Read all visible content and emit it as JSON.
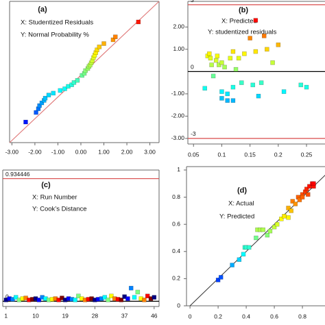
{
  "chart_data": [
    {
      "type": "scatter",
      "label": "(a)",
      "annotations": [
        "X: Studentized Residuals",
        "Y: Normal Probability %"
      ],
      "x": [
        -2.4,
        -1.95,
        -1.85,
        -1.8,
        -1.7,
        -1.6,
        -1.55,
        -1.4,
        -1.2,
        -0.9,
        -0.7,
        -0.55,
        -0.4,
        -0.3,
        -0.15,
        0.05,
        0.15,
        0.2,
        0.3,
        0.35,
        0.4,
        0.45,
        0.5,
        0.55,
        0.6,
        0.65,
        0.7,
        0.8,
        1.0,
        1.4,
        1.5,
        2.5
      ],
      "y": [
        3.4,
        7,
        9,
        11,
        13,
        15,
        17,
        20,
        22,
        25,
        27,
        30,
        32,
        35,
        38,
        45,
        48,
        52,
        55,
        58,
        60,
        63,
        66,
        70,
        73,
        76,
        79,
        82,
        85,
        88,
        90,
        96.6
      ],
      "xlim": [
        -3.1,
        3.4
      ],
      "ylim": [
        0.5,
        99.5
      ],
      "yscale": "probit",
      "xticks": [
        {
          "value": -3,
          "label": "-3.00"
        },
        {
          "value": -2,
          "label": "-2.00"
        },
        {
          "value": -1,
          "label": "-1.00"
        },
        {
          "value": 0,
          "label": "0.00"
        },
        {
          "value": 1,
          "label": "1.00"
        },
        {
          "value": 2,
          "label": "2.00"
        },
        {
          "value": 3,
          "label": "3.00"
        }
      ],
      "reference_line": "diagonal",
      "reference_color": "#e07a7a",
      "colormap": "jet"
    },
    {
      "type": "scatter",
      "label": "(b)",
      "annotations": [
        "X: Predicted",
        "Y: studentized residuals"
      ],
      "x": [
        0.075,
        0.078,
        0.08,
        0.082,
        0.085,
        0.09,
        0.092,
        0.095,
        0.1,
        0.1,
        0.105,
        0.11,
        0.11,
        0.115,
        0.12,
        0.12,
        0.125,
        0.13,
        0.135,
        0.14,
        0.15,
        0.155,
        0.16,
        0.16,
        0.165,
        0.17,
        0.175,
        0.18,
        0.19,
        0.2,
        0.21,
        0.24,
        0.25,
        0.07,
        0.1,
        0.12
      ],
      "y": [
        0.7,
        0.8,
        0.6,
        0.3,
        -0.2,
        0.5,
        0.7,
        0.3,
        0.4,
        -0.9,
        0.2,
        -1.0,
        -1.3,
        0.6,
        -1.3,
        -0.7,
        0.1,
        0.6,
        -0.5,
        0.8,
        1.5,
        -0.6,
        2.3,
        0.9,
        -1.1,
        -0.5,
        1.6,
        1.0,
        0.4,
        1.2,
        -0.9,
        -0.6,
        -0.7,
        -0.75,
        -1.2,
        0.9
      ],
      "xlim": [
        0.04,
        0.29
      ],
      "ylim": [
        -3.25,
        3.15
      ],
      "xticks": [
        0.05,
        0.1,
        0.15,
        0.2,
        0.25
      ],
      "yticks": [
        {
          "value": -3,
          "label": "-3.00"
        },
        {
          "value": -2,
          "label": "-2.00"
        },
        {
          "value": -1,
          "label": "-1.00"
        },
        {
          "value": 1,
          "label": "1.00"
        },
        {
          "value": 2,
          "label": "2.00"
        }
      ],
      "hlines": [
        {
          "value": 3,
          "color": "#d94a4a"
        },
        {
          "value": 0,
          "color": "#000000"
        },
        {
          "value": -3,
          "color": "#d94a4a"
        }
      ],
      "colormap": "jet"
    },
    {
      "type": "scatter",
      "label": "(c)",
      "annotations": [
        "X: Run Number",
        "Y: Cook’s Distance"
      ],
      "x": [
        1,
        2,
        3,
        4,
        5,
        6,
        7,
        8,
        9,
        10,
        11,
        12,
        13,
        14,
        15,
        16,
        17,
        18,
        19,
        20,
        21,
        22,
        23,
        24,
        25,
        26,
        27,
        28,
        29,
        30,
        31,
        32,
        33,
        34,
        35,
        36,
        37,
        38,
        39,
        40,
        41,
        42,
        43,
        44,
        45,
        46
      ],
      "y": [
        0.01,
        0.02,
        0.015,
        0.03,
        0.01,
        0.02,
        0.025,
        0.01,
        0.015,
        0.02,
        0.01,
        0.03,
        0.02,
        0.01,
        0.015,
        0.02,
        0.01,
        0.025,
        0.01,
        0.02,
        0.015,
        0.01,
        0.04,
        0.02,
        0.01,
        0.015,
        0.02,
        0.01,
        0.015,
        0.02,
        0.03,
        0.01,
        0.04,
        0.02,
        0.015,
        0.01,
        0.035,
        0.02,
        0.1,
        0.03,
        0.07,
        0.02,
        0.01,
        0.04,
        0.02,
        0.03
      ],
      "xlim": [
        0,
        47.5
      ],
      "ylim": [
        -0.04,
        1.0
      ],
      "xticks": [
        1,
        10,
        19,
        28,
        37,
        46
      ],
      "hlines": [
        {
          "value": 0.934446,
          "color": "#d94a4a"
        },
        {
          "value": 0,
          "color": "#000000"
        }
      ],
      "colormap": "jet"
    },
    {
      "type": "scatter",
      "label": "(d)",
      "annotations": [
        "X: Actual",
        "Y: Predicted"
      ],
      "x": [
        0.2,
        0.22,
        0.3,
        0.35,
        0.38,
        0.39,
        0.4,
        0.42,
        0.47,
        0.48,
        0.5,
        0.52,
        0.55,
        0.57,
        0.6,
        0.62,
        0.65,
        0.67,
        0.7,
        0.7,
        0.72,
        0.73,
        0.75,
        0.77,
        0.78,
        0.8,
        0.8,
        0.82,
        0.83,
        0.84,
        0.85,
        0.87,
        0.88,
        0.88
      ],
      "y": [
        0.19,
        0.21,
        0.3,
        0.34,
        0.38,
        0.43,
        0.43,
        0.43,
        0.5,
        0.56,
        0.56,
        0.56,
        0.52,
        0.55,
        0.58,
        0.6,
        0.64,
        0.66,
        0.65,
        0.72,
        0.7,
        0.77,
        0.75,
        0.8,
        0.78,
        0.82,
        0.8,
        0.84,
        0.86,
        0.82,
        0.88,
        0.9,
        0.88,
        0.9
      ],
      "xlim": [
        -0.025,
        0.99
      ],
      "ylim": [
        0,
        1.025
      ],
      "xticks": [
        0,
        0.2,
        0.4,
        0.6,
        0.8
      ],
      "yticks": [
        0,
        0.2,
        0.4,
        0.6,
        0.8,
        1
      ],
      "reference_line": "identity",
      "reference_color": "#333333",
      "colormap": "jet"
    }
  ]
}
